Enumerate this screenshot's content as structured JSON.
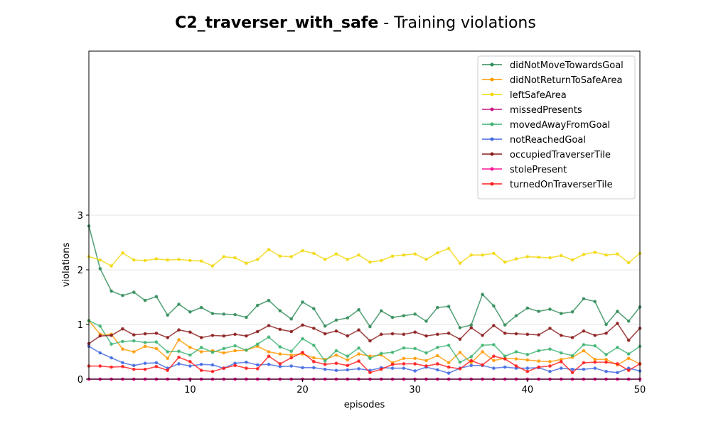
{
  "chart_data": {
    "type": "line",
    "title_bold": "C2_traverser_with_safe",
    "title_rest": " - Training violations",
    "xlabel": "episodes",
    "ylabel": "violations",
    "xlim": [
      1,
      50
    ],
    "ylim": [
      0,
      6
    ],
    "xticks": [
      10,
      20,
      30,
      40,
      50
    ],
    "yticks": [
      0,
      1,
      2,
      3
    ],
    "grid": "horizontal",
    "legend_position": "top-right",
    "x": [
      1,
      2,
      3,
      4,
      5,
      6,
      7,
      8,
      9,
      10,
      11,
      12,
      13,
      14,
      15,
      16,
      17,
      18,
      19,
      20,
      21,
      22,
      23,
      24,
      25,
      26,
      27,
      28,
      29,
      30,
      31,
      32,
      33,
      34,
      35,
      36,
      37,
      38,
      39,
      40,
      41,
      42,
      43,
      44,
      45,
      46,
      47,
      48,
      49,
      50
    ],
    "series": [
      {
        "name": "didNotMoveTowardsGoal",
        "color": "#2e8b57",
        "values": [
          2.8,
          2.02,
          1.61,
          1.53,
          1.59,
          1.44,
          1.51,
          1.17,
          1.37,
          1.23,
          1.31,
          1.2,
          1.19,
          1.18,
          1.13,
          1.35,
          1.44,
          1.25,
          1.1,
          1.41,
          1.29,
          0.97,
          1.08,
          1.12,
          1.27,
          0.96,
          1.25,
          1.13,
          1.16,
          1.19,
          1.06,
          1.31,
          1.33,
          0.94,
          0.99,
          1.55,
          1.34,
          0.99,
          1.16,
          1.3,
          1.24,
          1.28,
          1.2,
          1.23,
          1.47,
          1.42,
          1.0,
          1.24,
          1.06,
          1.32
        ]
      },
      {
        "name": "didNotReturnToSafeArea",
        "color": "#ff9900",
        "values": [
          1.07,
          0.82,
          0.82,
          0.55,
          0.5,
          0.6,
          0.56,
          0.38,
          0.72,
          0.58,
          0.5,
          0.52,
          0.48,
          0.52,
          0.53,
          0.6,
          0.5,
          0.46,
          0.44,
          0.46,
          0.39,
          0.36,
          0.44,
          0.35,
          0.46,
          0.42,
          0.44,
          0.3,
          0.38,
          0.38,
          0.34,
          0.43,
          0.3,
          0.49,
          0.3,
          0.5,
          0.34,
          0.38,
          0.37,
          0.35,
          0.33,
          0.32,
          0.36,
          0.4,
          0.52,
          0.36,
          0.36,
          0.26,
          0.38,
          0.28
        ]
      },
      {
        "name": "leftSafeArea",
        "color": "#f2d80c",
        "values": [
          2.24,
          2.18,
          2.07,
          2.31,
          2.18,
          2.17,
          2.2,
          2.18,
          2.19,
          2.17,
          2.16,
          2.07,
          2.24,
          2.22,
          2.12,
          2.19,
          2.37,
          2.25,
          2.24,
          2.35,
          2.3,
          2.19,
          2.29,
          2.19,
          2.27,
          2.14,
          2.17,
          2.25,
          2.27,
          2.29,
          2.19,
          2.31,
          2.39,
          2.12,
          2.27,
          2.27,
          2.3,
          2.14,
          2.2,
          2.24,
          2.23,
          2.22,
          2.26,
          2.18,
          2.28,
          2.32,
          2.27,
          2.29,
          2.13,
          2.3
        ]
      },
      {
        "name": "missedPresents",
        "color": "#c71585",
        "values": [
          0,
          0,
          0,
          0,
          0,
          0,
          0,
          0,
          0,
          0,
          0,
          0,
          0,
          0,
          0,
          0,
          0,
          0,
          0,
          0,
          0,
          0,
          0,
          0,
          0,
          0,
          0,
          0,
          0,
          0,
          0,
          0,
          0,
          0,
          0,
          0,
          0,
          0,
          0,
          0,
          0,
          0,
          0,
          0,
          0,
          0,
          0,
          0,
          0,
          0
        ]
      },
      {
        "name": "movedAwayFromGoal",
        "color": "#3cb371",
        "values": [
          1.07,
          0.97,
          0.64,
          0.69,
          0.7,
          0.67,
          0.68,
          0.5,
          0.51,
          0.44,
          0.58,
          0.49,
          0.56,
          0.61,
          0.53,
          0.64,
          0.77,
          0.59,
          0.51,
          0.74,
          0.62,
          0.33,
          0.52,
          0.42,
          0.57,
          0.38,
          0.47,
          0.49,
          0.57,
          0.56,
          0.48,
          0.58,
          0.62,
          0.31,
          0.41,
          0.62,
          0.63,
          0.42,
          0.5,
          0.45,
          0.52,
          0.55,
          0.48,
          0.43,
          0.63,
          0.61,
          0.45,
          0.58,
          0.46,
          0.6
        ]
      },
      {
        "name": "notReachedGoal",
        "color": "#4169e1",
        "values": [
          0.6,
          0.48,
          0.39,
          0.3,
          0.25,
          0.29,
          0.3,
          0.2,
          0.28,
          0.24,
          0.27,
          0.26,
          0.2,
          0.29,
          0.31,
          0.26,
          0.27,
          0.23,
          0.24,
          0.21,
          0.21,
          0.18,
          0.16,
          0.17,
          0.19,
          0.16,
          0.21,
          0.2,
          0.2,
          0.15,
          0.22,
          0.17,
          0.11,
          0.2,
          0.25,
          0.25,
          0.2,
          0.22,
          0.2,
          0.2,
          0.21,
          0.14,
          0.2,
          0.18,
          0.18,
          0.2,
          0.14,
          0.12,
          0.2,
          0.15
        ]
      },
      {
        "name": "occupiedTraverserTile",
        "color": "#8b1a1a",
        "values": [
          0.65,
          0.79,
          0.8,
          0.92,
          0.81,
          0.83,
          0.84,
          0.76,
          0.9,
          0.86,
          0.76,
          0.8,
          0.79,
          0.82,
          0.79,
          0.87,
          0.98,
          0.91,
          0.87,
          0.99,
          0.93,
          0.83,
          0.88,
          0.79,
          0.9,
          0.7,
          0.82,
          0.83,
          0.82,
          0.86,
          0.79,
          0.82,
          0.84,
          0.73,
          0.94,
          0.8,
          0.98,
          0.84,
          0.83,
          0.82,
          0.81,
          0.93,
          0.8,
          0.76,
          0.88,
          0.8,
          0.84,
          1.02,
          0.71,
          0.93
        ]
      },
      {
        "name": "stolePresent",
        "color": "#ff1493",
        "values": [
          0,
          0,
          0,
          0,
          0,
          0,
          0,
          0,
          0,
          0,
          0,
          0,
          0,
          0,
          0,
          0,
          0,
          0,
          0,
          0,
          0,
          0,
          0,
          0,
          0,
          0,
          0,
          0,
          0,
          0,
          0,
          0,
          0,
          0,
          0,
          0,
          0,
          0,
          0,
          0,
          0,
          0,
          0,
          0,
          0,
          0,
          0,
          0,
          0,
          0
        ]
      },
      {
        "name": "turnedOnTraverserTile",
        "color": "#ff1a1a",
        "values": [
          0.24,
          0.24,
          0.22,
          0.23,
          0.18,
          0.18,
          0.23,
          0.16,
          0.4,
          0.32,
          0.16,
          0.14,
          0.2,
          0.25,
          0.2,
          0.19,
          0.42,
          0.28,
          0.39,
          0.49,
          0.32,
          0.27,
          0.29,
          0.25,
          0.33,
          0.12,
          0.18,
          0.27,
          0.28,
          0.28,
          0.24,
          0.28,
          0.22,
          0.19,
          0.34,
          0.26,
          0.42,
          0.37,
          0.24,
          0.14,
          0.22,
          0.24,
          0.32,
          0.12,
          0.3,
          0.31,
          0.31,
          0.28,
          0.16,
          0.28
        ]
      }
    ]
  }
}
